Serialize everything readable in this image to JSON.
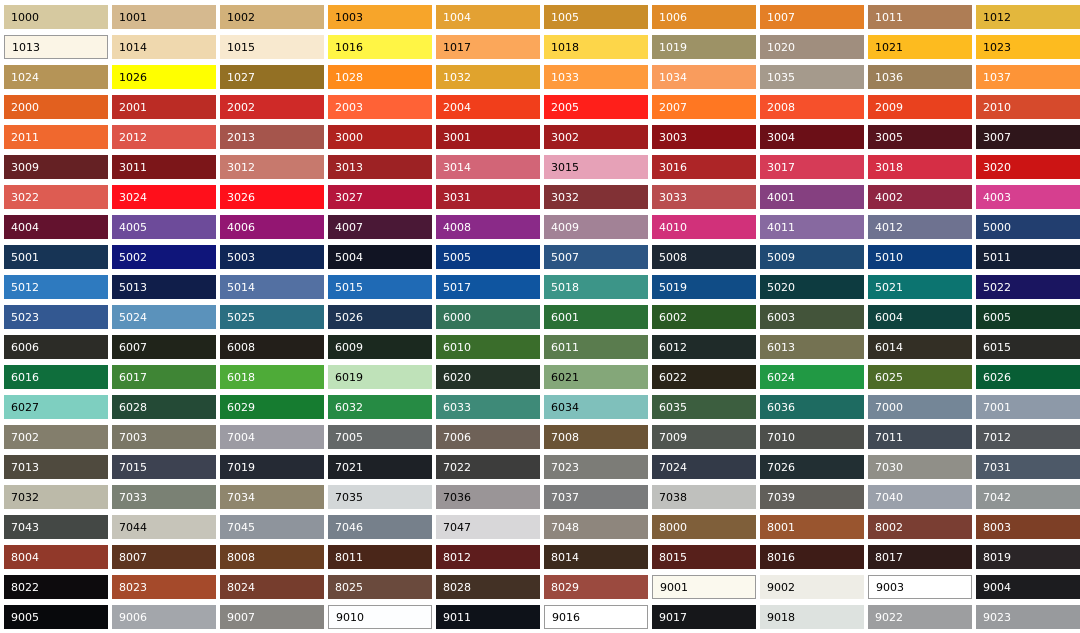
{
  "swatches": [
    {
      "c": "1000",
      "bg": "#d6c9a0",
      "fg": "#000"
    },
    {
      "c": "1001",
      "bg": "#d5b98f",
      "fg": "#000"
    },
    {
      "c": "1002",
      "bg": "#d2b17a",
      "fg": "#000"
    },
    {
      "c": "1003",
      "bg": "#f7a52a",
      "fg": "#000"
    },
    {
      "c": "1004",
      "bg": "#e3a133",
      "fg": "#fff"
    },
    {
      "c": "1005",
      "bg": "#c98d2a",
      "fg": "#fff"
    },
    {
      "c": "1006",
      "bg": "#e08a28",
      "fg": "#fff"
    },
    {
      "c": "1007",
      "bg": "#e47f26",
      "fg": "#fff"
    },
    {
      "c": "1011",
      "bg": "#ae7d55",
      "fg": "#fff"
    },
    {
      "c": "1012",
      "bg": "#e3b73d",
      "fg": "#000"
    },
    {
      "c": "1013",
      "bg": "#fbf5e6",
      "fg": "#000",
      "outlined": true
    },
    {
      "c": "1014",
      "bg": "#efd8ae",
      "fg": "#000"
    },
    {
      "c": "1015",
      "bg": "#f8e9cf",
      "fg": "#000"
    },
    {
      "c": "1016",
      "bg": "#fff545",
      "fg": "#000"
    },
    {
      "c": "1017",
      "bg": "#fba75a",
      "fg": "#000"
    },
    {
      "c": "1018",
      "bg": "#fdd649",
      "fg": "#000"
    },
    {
      "c": "1019",
      "bg": "#9d9266",
      "fg": "#fff"
    },
    {
      "c": "1020",
      "bg": "#a08e7e",
      "fg": "#fff"
    },
    {
      "c": "1021",
      "bg": "#fdbb1f",
      "fg": "#000"
    },
    {
      "c": "1023",
      "bg": "#fdbb1f",
      "fg": "#000"
    },
    {
      "c": "1024",
      "bg": "#b59457",
      "fg": "#fff"
    },
    {
      "c": "1026",
      "bg": "#ffff00",
      "fg": "#000"
    },
    {
      "c": "1027",
      "bg": "#937024",
      "fg": "#fff"
    },
    {
      "c": "1028",
      "bg": "#fe8b1b",
      "fg": "#fff"
    },
    {
      "c": "1032",
      "bg": "#e0a32d",
      "fg": "#fff"
    },
    {
      "c": "1033",
      "bg": "#fe9a3c",
      "fg": "#fff"
    },
    {
      "c": "1034",
      "bg": "#f99c5d",
      "fg": "#fff"
    },
    {
      "c": "1035",
      "bg": "#a59a8c",
      "fg": "#fff"
    },
    {
      "c": "1036",
      "bg": "#9b7f58",
      "fg": "#fff"
    },
    {
      "c": "1037",
      "bg": "#fd9437",
      "fg": "#fff"
    },
    {
      "c": "2000",
      "bg": "#e2601f",
      "fg": "#fff"
    },
    {
      "c": "2001",
      "bg": "#bb2c25",
      "fg": "#fff"
    },
    {
      "c": "2002",
      "bg": "#cf2a28",
      "fg": "#fff"
    },
    {
      "c": "2003",
      "bg": "#ff6236",
      "fg": "#fff"
    },
    {
      "c": "2004",
      "bg": "#f13e1b",
      "fg": "#fff"
    },
    {
      "c": "2005",
      "bg": "#ff1f1a",
      "fg": "#fff"
    },
    {
      "c": "2007",
      "bg": "#ff7722",
      "fg": "#fff"
    },
    {
      "c": "2008",
      "bg": "#f6502b",
      "fg": "#fff"
    },
    {
      "c": "2009",
      "bg": "#e9411e",
      "fg": "#fff"
    },
    {
      "c": "2010",
      "bg": "#d64a2c",
      "fg": "#fff"
    },
    {
      "c": "2011",
      "bg": "#f0682e",
      "fg": "#fff"
    },
    {
      "c": "2012",
      "bg": "#dd5449",
      "fg": "#fff"
    },
    {
      "c": "2013",
      "bg": "#a5554c",
      "fg": "#fff"
    },
    {
      "c": "3000",
      "bg": "#b0221f",
      "fg": "#fff"
    },
    {
      "c": "3001",
      "bg": "#a11a1d",
      "fg": "#fff"
    },
    {
      "c": "3002",
      "bg": "#a01c1e",
      "fg": "#fff"
    },
    {
      "c": "3003",
      "bg": "#8d1116",
      "fg": "#fff"
    },
    {
      "c": "3004",
      "bg": "#6b0f17",
      "fg": "#fff"
    },
    {
      "c": "3005",
      "bg": "#56131d",
      "fg": "#fff"
    },
    {
      "c": "3007",
      "bg": "#2f161b",
      "fg": "#fff"
    },
    {
      "c": "3009",
      "bg": "#652124",
      "fg": "#fff"
    },
    {
      "c": "3011",
      "bg": "#7c1619",
      "fg": "#fff"
    },
    {
      "c": "3012",
      "bg": "#c7796d",
      "fg": "#fff"
    },
    {
      "c": "3013",
      "bg": "#9d2224",
      "fg": "#fff"
    },
    {
      "c": "3014",
      "bg": "#d26577",
      "fg": "#fff"
    },
    {
      "c": "3015",
      "bg": "#e6a1b7",
      "fg": "#000"
    },
    {
      "c": "3016",
      "bg": "#ad2527",
      "fg": "#fff"
    },
    {
      "c": "3017",
      "bg": "#d63b57",
      "fg": "#fff"
    },
    {
      "c": "3018",
      "bg": "#d52e45",
      "fg": "#fff"
    },
    {
      "c": "3020",
      "bg": "#cc1414",
      "fg": "#fff"
    },
    {
      "c": "3022",
      "bg": "#dd5c52",
      "fg": "#fff"
    },
    {
      "c": "3024",
      "bg": "#ff0f1b",
      "fg": "#fff"
    },
    {
      "c": "3026",
      "bg": "#ff0f1a",
      "fg": "#fff"
    },
    {
      "c": "3027",
      "bg": "#b5153c",
      "fg": "#fff"
    },
    {
      "c": "3031",
      "bg": "#a8202c",
      "fg": "#fff"
    },
    {
      "c": "3032",
      "bg": "#813135",
      "fg": "#fff"
    },
    {
      "c": "3033",
      "bg": "#b94d4f",
      "fg": "#fff"
    },
    {
      "c": "4001",
      "bg": "#854080",
      "fg": "#fff"
    },
    {
      "c": "4002",
      "bg": "#8f2642",
      "fg": "#fff"
    },
    {
      "c": "4003",
      "bg": "#d63f8f",
      "fg": "#fff"
    },
    {
      "c": "4004",
      "bg": "#63122e",
      "fg": "#fff"
    },
    {
      "c": "4005",
      "bg": "#6d4b9a",
      "fg": "#fff"
    },
    {
      "c": "4006",
      "bg": "#931672",
      "fg": "#fff"
    },
    {
      "c": "4007",
      "bg": "#4a1836",
      "fg": "#fff"
    },
    {
      "c": "4008",
      "bg": "#8a2a88",
      "fg": "#fff"
    },
    {
      "c": "4009",
      "bg": "#a28296",
      "fg": "#fff"
    },
    {
      "c": "4010",
      "bg": "#d1317a",
      "fg": "#fff"
    },
    {
      "c": "4011",
      "bg": "#8769a0",
      "fg": "#fff"
    },
    {
      "c": "4012",
      "bg": "#6e7290",
      "fg": "#fff"
    },
    {
      "c": "5000",
      "bg": "#223e6f",
      "fg": "#fff"
    },
    {
      "c": "5001",
      "bg": "#173455",
      "fg": "#fff"
    },
    {
      "c": "5002",
      "bg": "#0f157a",
      "fg": "#fff"
    },
    {
      "c": "5003",
      "bg": "#0f2656",
      "fg": "#fff"
    },
    {
      "c": "5004",
      "bg": "#111423",
      "fg": "#fff"
    },
    {
      "c": "5005",
      "bg": "#0a3a83",
      "fg": "#fff"
    },
    {
      "c": "5007",
      "bg": "#2c5583",
      "fg": "#fff"
    },
    {
      "c": "5008",
      "bg": "#1d2834",
      "fg": "#fff"
    },
    {
      "c": "5009",
      "bg": "#1f4a73",
      "fg": "#fff"
    },
    {
      "c": "5010",
      "bg": "#0b3c7c",
      "fg": "#fff"
    },
    {
      "c": "5011",
      "bg": "#152035",
      "fg": "#fff"
    },
    {
      "c": "5012",
      "bg": "#2e7abf",
      "fg": "#fff"
    },
    {
      "c": "5013",
      "bg": "#101e4a",
      "fg": "#fff"
    },
    {
      "c": "5014",
      "bg": "#5370a2",
      "fg": "#fff"
    },
    {
      "c": "5015",
      "bg": "#1f6ab5",
      "fg": "#fff"
    },
    {
      "c": "5017",
      "bg": "#0f55a0",
      "fg": "#fff"
    },
    {
      "c": "5018",
      "bg": "#3c9588",
      "fg": "#fff"
    },
    {
      "c": "5019",
      "bg": "#104c86",
      "fg": "#fff"
    },
    {
      "c": "5020",
      "bg": "#0d3b40",
      "fg": "#fff"
    },
    {
      "c": "5021",
      "bg": "#0c7470",
      "fg": "#fff"
    },
    {
      "c": "5022",
      "bg": "#1a1560",
      "fg": "#fff"
    },
    {
      "c": "5023",
      "bg": "#335891",
      "fg": "#fff"
    },
    {
      "c": "5024",
      "bg": "#5b92bb",
      "fg": "#fff"
    },
    {
      "c": "5025",
      "bg": "#2a6e81",
      "fg": "#fff"
    },
    {
      "c": "5026",
      "bg": "#1d3453",
      "fg": "#fff"
    },
    {
      "c": "6000",
      "bg": "#347459",
      "fg": "#fff"
    },
    {
      "c": "6001",
      "bg": "#2a7036",
      "fg": "#fff"
    },
    {
      "c": "6002",
      "bg": "#2a5a24",
      "fg": "#fff"
    },
    {
      "c": "6003",
      "bg": "#43543a",
      "fg": "#fff"
    },
    {
      "c": "6004",
      "bg": "#0f433e",
      "fg": "#fff"
    },
    {
      "c": "6005",
      "bg": "#123c26",
      "fg": "#fff"
    },
    {
      "c": "6006",
      "bg": "#2c2c27",
      "fg": "#fff"
    },
    {
      "c": "6007",
      "bg": "#20241a",
      "fg": "#fff"
    },
    {
      "c": "6008",
      "bg": "#231f1a",
      "fg": "#fff"
    },
    {
      "c": "6009",
      "bg": "#1b291f",
      "fg": "#fff"
    },
    {
      "c": "6010",
      "bg": "#3a6d2b",
      "fg": "#fff"
    },
    {
      "c": "6011",
      "bg": "#5a7c4e",
      "fg": "#fff"
    },
    {
      "c": "6012",
      "bg": "#1f2b29",
      "fg": "#fff"
    },
    {
      "c": "6013",
      "bg": "#747252",
      "fg": "#fff"
    },
    {
      "c": "6014",
      "bg": "#332f25",
      "fg": "#fff"
    },
    {
      "c": "6015",
      "bg": "#2a2a27",
      "fg": "#fff"
    },
    {
      "c": "6016",
      "bg": "#0f6e3c",
      "fg": "#fff"
    },
    {
      "c": "6017",
      "bg": "#3f8535",
      "fg": "#fff"
    },
    {
      "c": "6018",
      "bg": "#4eab38",
      "fg": "#fff"
    },
    {
      "c": "6019",
      "bg": "#bfe2b9",
      "fg": "#000"
    },
    {
      "c": "6020",
      "bg": "#243328",
      "fg": "#fff"
    },
    {
      "c": "6021",
      "bg": "#84a779",
      "fg": "#000"
    },
    {
      "c": "6022",
      "bg": "#2a2519",
      "fg": "#fff"
    },
    {
      "c": "6024",
      "bg": "#219944",
      "fg": "#fff"
    },
    {
      "c": "6025",
      "bg": "#4d6b28",
      "fg": "#fff"
    },
    {
      "c": "6026",
      "bg": "#085e35",
      "fg": "#fff"
    },
    {
      "c": "6027",
      "bg": "#7ecfc0",
      "fg": "#000"
    },
    {
      "c": "6028",
      "bg": "#244a36",
      "fg": "#fff"
    },
    {
      "c": "6029",
      "bg": "#167c30",
      "fg": "#fff"
    },
    {
      "c": "6032",
      "bg": "#268b44",
      "fg": "#fff"
    },
    {
      "c": "6033",
      "bg": "#3e8a78",
      "fg": "#fff"
    },
    {
      "c": "6034",
      "bg": "#7fc0bb",
      "fg": "#000"
    },
    {
      "c": "6035",
      "bg": "#3c5e3f",
      "fg": "#fff"
    },
    {
      "c": "6036",
      "bg": "#1e6b61",
      "fg": "#fff"
    },
    {
      "c": "7000",
      "bg": "#748697",
      "fg": "#fff"
    },
    {
      "c": "7001",
      "bg": "#8d99a8",
      "fg": "#fff"
    },
    {
      "c": "7002",
      "bg": "#837e6c",
      "fg": "#fff"
    },
    {
      "c": "7003",
      "bg": "#7a7766",
      "fg": "#fff"
    },
    {
      "c": "7004",
      "bg": "#9c9ba3",
      "fg": "#fff"
    },
    {
      "c": "7005",
      "bg": "#646868",
      "fg": "#fff"
    },
    {
      "c": "7006",
      "bg": "#6e6157",
      "fg": "#fff"
    },
    {
      "c": "7008",
      "bg": "#6b5436",
      "fg": "#fff"
    },
    {
      "c": "7009",
      "bg": "#505650",
      "fg": "#fff"
    },
    {
      "c": "7010",
      "bg": "#4d4f4b",
      "fg": "#fff"
    },
    {
      "c": "7011",
      "bg": "#414a55",
      "fg": "#fff"
    },
    {
      "c": "7012",
      "bg": "#515559",
      "fg": "#fff"
    },
    {
      "c": "7013",
      "bg": "#4f4a3e",
      "fg": "#fff"
    },
    {
      "c": "7015",
      "bg": "#3d4251",
      "fg": "#fff"
    },
    {
      "c": "7019",
      "bg": "#252a34",
      "fg": "#fff"
    },
    {
      "c": "7021",
      "bg": "#1d2126",
      "fg": "#fff"
    },
    {
      "c": "7022",
      "bg": "#3d3d3c",
      "fg": "#fff"
    },
    {
      "c": "7023",
      "bg": "#7c7c77",
      "fg": "#fff"
    },
    {
      "c": "7024",
      "bg": "#333a48",
      "fg": "#fff"
    },
    {
      "c": "7026",
      "bg": "#222f33",
      "fg": "#fff"
    },
    {
      "c": "7030",
      "bg": "#908f88",
      "fg": "#fff"
    },
    {
      "c": "7031",
      "bg": "#4d5968",
      "fg": "#fff"
    },
    {
      "c": "7032",
      "bg": "#bcbaa9",
      "fg": "#000"
    },
    {
      "c": "7033",
      "bg": "#7a8174",
      "fg": "#fff"
    },
    {
      "c": "7034",
      "bg": "#8f866d",
      "fg": "#fff"
    },
    {
      "c": "7035",
      "bg": "#d3d7d8",
      "fg": "#000"
    },
    {
      "c": "7036",
      "bg": "#9a9597",
      "fg": "#000"
    },
    {
      "c": "7037",
      "bg": "#7a7b7c",
      "fg": "#fff"
    },
    {
      "c": "7038",
      "bg": "#bfc0bd",
      "fg": "#000"
    },
    {
      "c": "7039",
      "bg": "#615f5a",
      "fg": "#fff"
    },
    {
      "c": "7040",
      "bg": "#9aa0aa",
      "fg": "#fff"
    },
    {
      "c": "7042",
      "bg": "#8f9494",
      "fg": "#fff"
    },
    {
      "c": "7043",
      "bg": "#444845",
      "fg": "#fff"
    },
    {
      "c": "7044",
      "bg": "#c6c4b9",
      "fg": "#000"
    },
    {
      "c": "7045",
      "bg": "#8e949c",
      "fg": "#fff"
    },
    {
      "c": "7046",
      "bg": "#76808b",
      "fg": "#fff"
    },
    {
      "c": "7047",
      "bg": "#d8d7d9",
      "fg": "#000"
    },
    {
      "c": "7048",
      "bg": "#8e867d",
      "fg": "#fff"
    },
    {
      "c": "8000",
      "bg": "#7f5f3a",
      "fg": "#fff"
    },
    {
      "c": "8001",
      "bg": "#99552f",
      "fg": "#fff"
    },
    {
      "c": "8002",
      "bg": "#7a3e33",
      "fg": "#fff"
    },
    {
      "c": "8003",
      "bg": "#7d3f26",
      "fg": "#fff"
    },
    {
      "c": "8004",
      "bg": "#91392a",
      "fg": "#fff"
    },
    {
      "c": "8007",
      "bg": "#5e3520",
      "fg": "#fff"
    },
    {
      "c": "8008",
      "bg": "#6a3f22",
      "fg": "#fff"
    },
    {
      "c": "8011",
      "bg": "#4a2619",
      "fg": "#fff"
    },
    {
      "c": "8012",
      "bg": "#5e1d1d",
      "fg": "#fff"
    },
    {
      "c": "8014",
      "bg": "#3d2b1e",
      "fg": "#fff"
    },
    {
      "c": "8015",
      "bg": "#57201b",
      "fg": "#fff"
    },
    {
      "c": "8016",
      "bg": "#3e1c17",
      "fg": "#fff"
    },
    {
      "c": "8017",
      "bg": "#2f1c1a",
      "fg": "#fff"
    },
    {
      "c": "8019",
      "bg": "#2a2527",
      "fg": "#fff"
    },
    {
      "c": "8022",
      "bg": "#0d0b0d",
      "fg": "#fff"
    },
    {
      "c": "8023",
      "bg": "#a54a2b",
      "fg": "#fff"
    },
    {
      "c": "8024",
      "bg": "#763d2d",
      "fg": "#fff"
    },
    {
      "c": "8025",
      "bg": "#6a4a3d",
      "fg": "#fff"
    },
    {
      "c": "8028",
      "bg": "#433125",
      "fg": "#fff"
    },
    {
      "c": "8029",
      "bg": "#9b4a3f",
      "fg": "#fff"
    },
    {
      "c": "9001",
      "bg": "#fbf9ee",
      "fg": "#000",
      "outlined": true
    },
    {
      "c": "9002",
      "bg": "#eeede6",
      "fg": "#000"
    },
    {
      "c": "9003",
      "bg": "#ffffff",
      "fg": "#000",
      "outlined": true
    },
    {
      "c": "9004",
      "bg": "#1c1c1f",
      "fg": "#fff"
    },
    {
      "c": "9005",
      "bg": "#08090c",
      "fg": "#fff"
    },
    {
      "c": "9006",
      "bg": "#a3a6ab",
      "fg": "#fff"
    },
    {
      "c": "9007",
      "bg": "#878581",
      "fg": "#fff"
    },
    {
      "c": "9010",
      "bg": "#fdfeff",
      "fg": "#000",
      "outlined": true
    },
    {
      "c": "9011",
      "bg": "#0e1219",
      "fg": "#fff"
    },
    {
      "c": "9016",
      "bg": "#ffffff",
      "fg": "#000",
      "outlined": true
    },
    {
      "c": "9017",
      "bg": "#16171a",
      "fg": "#fff"
    },
    {
      "c": "9018",
      "bg": "#dde2df",
      "fg": "#000"
    },
    {
      "c": "9022",
      "bg": "#9d9ea0",
      "fg": "#fff"
    },
    {
      "c": "9023",
      "bg": "#989a9d",
      "fg": "#fff"
    }
  ]
}
